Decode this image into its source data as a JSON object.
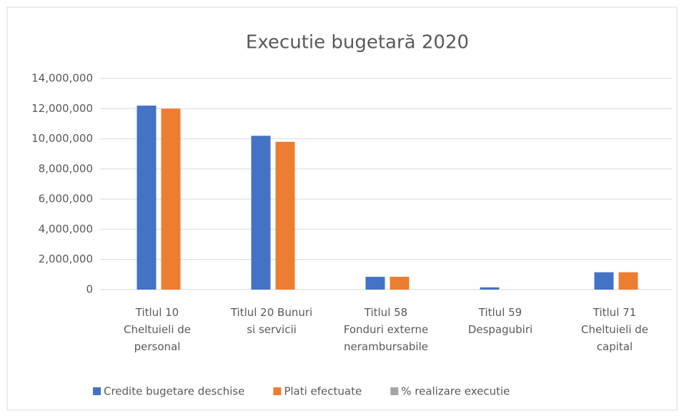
{
  "chart_data": {
    "type": "bar",
    "title": "Executie bugetară 2020",
    "categories": [
      "Titlul 10 Cheltuieli de personal",
      "Titlul 20 Bunuri si servicii",
      "Titlul 58 Fonduri externe nerambursabile",
      "Titlul 59 Despagubiri",
      "Titlul 71 Cheltuieli de capital"
    ],
    "series": [
      {
        "name": "Credite bugetare deschise",
        "color": "#4472c4",
        "values": [
          12200000,
          10200000,
          850000,
          150000,
          1150000
        ]
      },
      {
        "name": "Plati efectuate",
        "color": "#ed7d31",
        "values": [
          12000000,
          9800000,
          850000,
          0,
          1150000
        ]
      },
      {
        "name": "% realizare  executie",
        "color": "#a5a5a5",
        "values": [
          98,
          96,
          100,
          0,
          100
        ]
      }
    ],
    "ylim": [
      0,
      14000000
    ],
    "yticks": [
      0,
      {
        "value": 2000000,
        "label": "2,000,000"
      },
      {
        "value": 4000000,
        "label": "4,000,000"
      },
      {
        "value": 6000000,
        "label": "6,000,000"
      },
      {
        "value": 8000000,
        "label": "8,000,000"
      },
      {
        "value": 10000000,
        "label": "10,000,000"
      },
      {
        "value": 12000000,
        "label": "12,000,000"
      },
      {
        "value": 14000000,
        "label": "14,000,000"
      }
    ],
    "grid": true,
    "legend": "bottom"
  }
}
